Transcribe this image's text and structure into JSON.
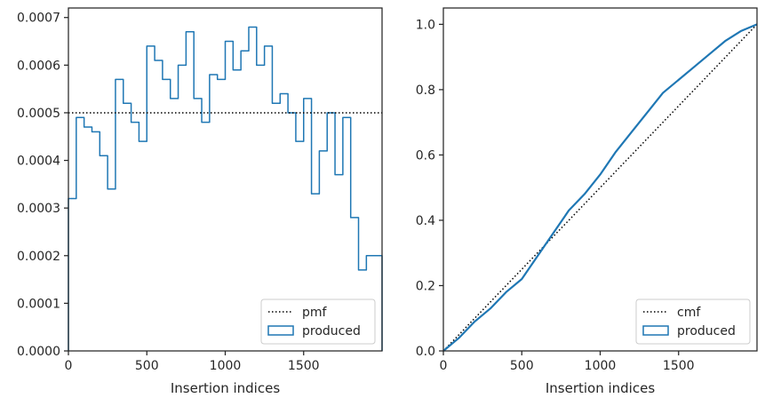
{
  "chart_data": [
    {
      "type": "histogram",
      "xlabel": "Insertion indices",
      "ylabel": "",
      "xlim": [
        0,
        2000
      ],
      "ylim": [
        0,
        0.00072
      ],
      "xticks": [
        0,
        500,
        1000,
        1500
      ],
      "xtick_labels": [
        "0",
        "500",
        "1000",
        "1500"
      ],
      "yticks": [
        0,
        0.0001,
        0.0002,
        0.0003,
        0.0004,
        0.0005,
        0.0006,
        0.0007
      ],
      "ytick_labels": [
        "0.0000",
        "0.0001",
        "0.0002",
        "0.0003",
        "0.0004",
        "0.0005",
        "0.0006",
        "0.0007"
      ],
      "bin_width": 50,
      "series": [
        {
          "name": "produced",
          "style": "step",
          "color": "#1f77b4",
          "bin_starts": [
            0,
            50,
            100,
            150,
            200,
            250,
            300,
            350,
            400,
            450,
            500,
            550,
            600,
            650,
            700,
            750,
            800,
            850,
            900,
            950,
            1000,
            1050,
            1100,
            1150,
            1200,
            1250,
            1300,
            1350,
            1400,
            1450,
            1500,
            1550,
            1600,
            1650,
            1700,
            1750,
            1800,
            1850,
            1900,
            1950
          ],
          "values": [
            0.00032,
            0.00049,
            0.00047,
            0.00046,
            0.00041,
            0.00034,
            0.00057,
            0.00052,
            0.00048,
            0.00044,
            0.00064,
            0.00061,
            0.00057,
            0.00053,
            0.0006,
            0.00067,
            0.00053,
            0.00048,
            0.00058,
            0.00057,
            0.00065,
            0.00059,
            0.00063,
            0.00068,
            0.0006,
            0.00064,
            0.00052,
            0.00054,
            0.0005,
            0.00044,
            0.00053,
            0.00033,
            0.00042,
            0.0005,
            0.00037,
            0.00049,
            0.00028,
            0.00017,
            0.0002,
            0.0002
          ]
        },
        {
          "name": "pmf",
          "style": "dotted",
          "color": "#000000",
          "x": [
            0,
            2000
          ],
          "values": [
            0.0005,
            0.0005
          ]
        }
      ],
      "legend": [
        "pmf",
        "produced"
      ],
      "legend_position": "lower-right"
    },
    {
      "type": "line",
      "xlabel": "Insertion indices",
      "ylabel": "",
      "xlim": [
        0,
        2000
      ],
      "ylim": [
        0,
        1.05
      ],
      "xticks": [
        0,
        500,
        1000,
        1500
      ],
      "xtick_labels": [
        "0",
        "500",
        "1000",
        "1500"
      ],
      "yticks": [
        0,
        0.2,
        0.4,
        0.6,
        0.8,
        1.0
      ],
      "ytick_labels": [
        "0.0",
        "0.2",
        "0.4",
        "0.6",
        "0.8",
        "1.0"
      ],
      "series": [
        {
          "name": "cmf",
          "style": "dotted",
          "color": "#000000",
          "x": [
            0,
            2000
          ],
          "values": [
            0,
            1.0
          ]
        },
        {
          "name": "produced",
          "style": "solid",
          "color": "#1f77b4",
          "x": [
            0,
            100,
            200,
            300,
            400,
            500,
            600,
            700,
            800,
            900,
            1000,
            1100,
            1200,
            1300,
            1400,
            1500,
            1600,
            1700,
            1800,
            1900,
            2000
          ],
          "values": [
            0,
            0.04,
            0.09,
            0.13,
            0.18,
            0.22,
            0.29,
            0.36,
            0.43,
            0.48,
            0.54,
            0.61,
            0.67,
            0.73,
            0.79,
            0.83,
            0.87,
            0.91,
            0.95,
            0.98,
            1.0
          ]
        }
      ],
      "legend": [
        "cmf",
        "produced"
      ],
      "legend_position": "lower-right"
    }
  ]
}
